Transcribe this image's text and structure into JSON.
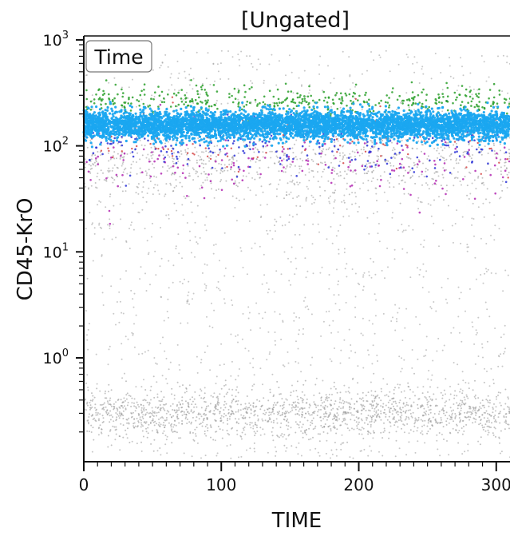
{
  "chart_data": {
    "type": "scatter",
    "title": "[Ungated]",
    "xlabel": "TIME",
    "ylabel": "CD45-KrO",
    "annotation": "Time",
    "xlim": [
      0,
      310
    ],
    "ylim_log10": [
      -1,
      3
    ],
    "y_scale": "log",
    "x_ticks": [
      {
        "value": 0,
        "label": "0"
      },
      {
        "value": 100,
        "label": "100"
      },
      {
        "value": 200,
        "label": "200"
      },
      {
        "value": 300,
        "label": "300"
      }
    ],
    "y_ticks": [
      {
        "value": 1000,
        "base": "10",
        "exp": "3"
      },
      {
        "value": 100,
        "base": "10",
        "exp": "2"
      },
      {
        "value": 10,
        "base": "10",
        "exp": "1"
      },
      {
        "value": 1,
        "base": "10",
        "exp": "0"
      }
    ],
    "populations": [
      {
        "color": "#1aa7f0",
        "y_range": [
          110,
          250
        ],
        "density": "very high"
      },
      {
        "color": "#2ca02c",
        "y_range": [
          200,
          400
        ],
        "density": "low"
      },
      {
        "color": "#2b33d6",
        "y_range": [
          80,
          200
        ],
        "density": "low"
      },
      {
        "color": "#b32ab3",
        "y_range": [
          30,
          120
        ],
        "density": "low"
      },
      {
        "color": "#d23a3a",
        "y_range": [
          80,
          250
        ],
        "density": "low"
      },
      {
        "color": "#9a9a9a",
        "y_range": [
          0.15,
          1000
        ],
        "density": "medium, concentrated near 0.3 and 80"
      }
    ]
  }
}
